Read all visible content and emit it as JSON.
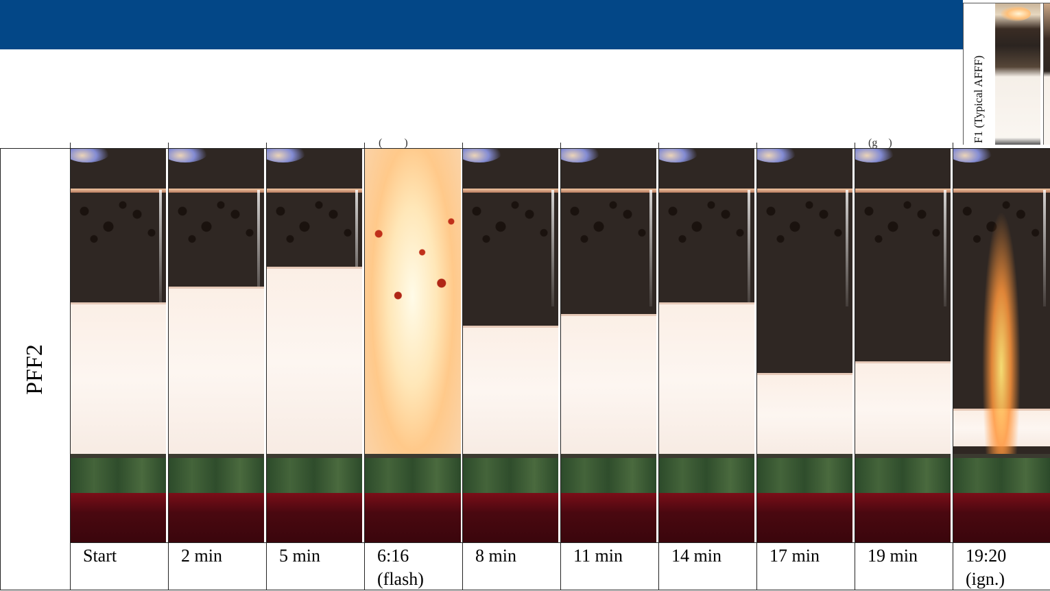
{
  "header": {
    "bar_color": "#034787"
  },
  "inset": {
    "label": "F1 (Typical AFFF)"
  },
  "table": {
    "row_label": "PFF2",
    "frames": [
      {
        "caption": "Start",
        "foam_level_top": 0.39,
        "state": "foam"
      },
      {
        "caption": "2 min",
        "foam_level_top": 0.35,
        "state": "foam"
      },
      {
        "caption": "5 min",
        "foam_level_top": 0.3,
        "state": "foam"
      },
      {
        "caption": "6:16\n(flash)",
        "state": "flash"
      },
      {
        "caption": "8 min",
        "foam_level_top": 0.45,
        "state": "foam"
      },
      {
        "caption": "11 min",
        "foam_level_top": 0.42,
        "state": "foam"
      },
      {
        "caption": "14 min",
        "foam_level_top": 0.39,
        "state": "foam"
      },
      {
        "caption": "17 min",
        "foam_level_top": 0.57,
        "state": "foam"
      },
      {
        "caption": "19 min",
        "foam_level_top": 0.54,
        "state": "foam"
      },
      {
        "caption": "19:20\n(ign.)",
        "state": "ignition"
      }
    ]
  }
}
